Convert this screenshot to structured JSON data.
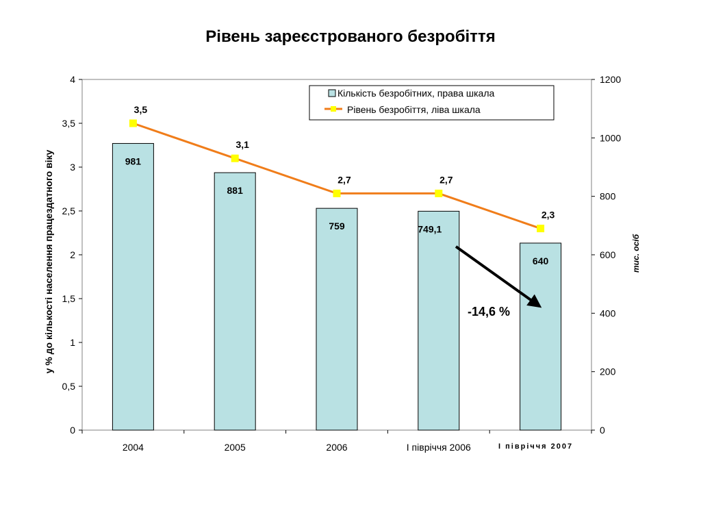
{
  "chart_data": {
    "type": "bar+line",
    "title": "Рівень зареєстрованого безробіття",
    "categories": [
      "2004",
      "2005",
      "2006",
      "І півріччя 2006",
      "І півріччя 2007"
    ],
    "series": [
      {
        "name": "Кількість безробітних, права шкала",
        "type": "bar",
        "axis": "right",
        "values": [
          981,
          881,
          759,
          749.1,
          640
        ],
        "labels": [
          "981",
          "881",
          "759",
          "749,1",
          "640"
        ],
        "color": "#b9e1e3"
      },
      {
        "name": "Рівень безробіття, ліва шкала",
        "type": "line",
        "axis": "left",
        "values": [
          3.5,
          3.1,
          2.7,
          2.7,
          2.3
        ],
        "labels": [
          "3,5",
          "3,1",
          "2,7",
          "2,7",
          "2,3"
        ],
        "color": "#f07d1a",
        "marker_color": "#ffff00"
      }
    ],
    "y_left": {
      "label": "у % до кількості населення працездатного віку",
      "range": [
        0,
        4
      ],
      "ticks": [
        0,
        0.5,
        1,
        1.5,
        2,
        2.5,
        3,
        3.5,
        4
      ],
      "tick_labels": [
        "0",
        "0,5",
        "1",
        "1,5",
        "2",
        "2,5",
        "3",
        "3,5",
        "4"
      ]
    },
    "y_right": {
      "label": "тис. осіб",
      "range": [
        0,
        1200
      ],
      "ticks": [
        0,
        200,
        400,
        600,
        800,
        1000,
        1200
      ],
      "tick_labels": [
        "0",
        "200",
        "400",
        "600",
        "800",
        "1000",
        "1200"
      ]
    },
    "grid": false,
    "legend_position": "top-right",
    "annotation": {
      "value": "-14,6",
      "unit": "%",
      "from_category": 3,
      "to_category": 4
    }
  }
}
